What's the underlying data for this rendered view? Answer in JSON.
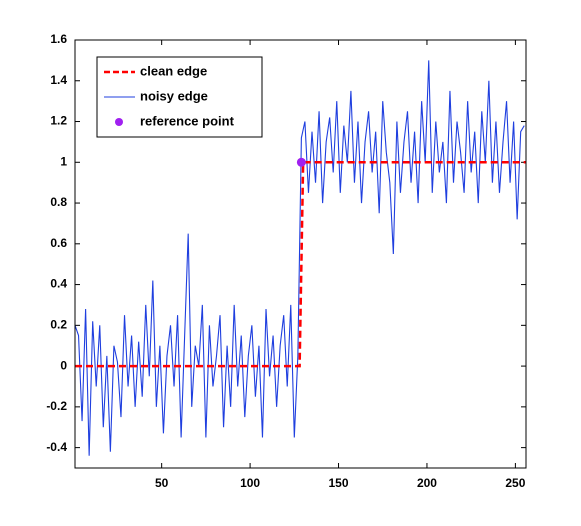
{
  "chart_data": {
    "type": "line",
    "xlim": [
      1,
      256
    ],
    "ylim": [
      -0.5,
      1.6
    ],
    "xticks": [
      50,
      100,
      150,
      200,
      250
    ],
    "yticks": [
      -0.4,
      -0.2,
      0,
      0.2,
      0.4,
      0.6,
      0.8,
      1,
      1.2,
      1.4,
      1.6
    ],
    "legend": "upper-left",
    "series": [
      {
        "name": "clean edge",
        "color": "#ff0000",
        "style": "dashed",
        "x": [
          1,
          128,
          130,
          256
        ],
        "values": [
          0,
          0,
          1,
          1
        ]
      },
      {
        "name": "noisy edge",
        "color": "#1f3fdf",
        "style": "solid",
        "x": [
          1,
          3,
          5,
          7,
          9,
          11,
          13,
          15,
          17,
          19,
          21,
          23,
          25,
          27,
          29,
          31,
          33,
          35,
          37,
          39,
          41,
          43,
          45,
          47,
          49,
          51,
          53,
          55,
          57,
          59,
          61,
          63,
          65,
          67,
          69,
          71,
          73,
          75,
          77,
          79,
          81,
          83,
          85,
          87,
          89,
          91,
          93,
          95,
          97,
          99,
          101,
          103,
          105,
          107,
          109,
          111,
          113,
          115,
          117,
          119,
          121,
          123,
          125,
          127,
          129,
          131,
          133,
          135,
          137,
          139,
          141,
          143,
          145,
          147,
          149,
          151,
          153,
          155,
          157,
          159,
          161,
          163,
          165,
          167,
          169,
          171,
          173,
          175,
          177,
          179,
          181,
          183,
          185,
          187,
          189,
          191,
          193,
          195,
          197,
          199,
          201,
          203,
          205,
          207,
          209,
          211,
          213,
          215,
          217,
          219,
          221,
          223,
          225,
          227,
          229,
          231,
          233,
          235,
          237,
          239,
          241,
          243,
          245,
          247,
          249,
          251,
          253,
          255
        ],
        "values": [
          0.2,
          0.15,
          -0.27,
          0.28,
          -0.44,
          0.22,
          -0.1,
          0.2,
          -0.3,
          0.05,
          -0.42,
          0.1,
          0.02,
          -0.25,
          0.25,
          -0.1,
          0.15,
          -0.2,
          0.12,
          -0.15,
          0.3,
          -0.05,
          0.42,
          -0.2,
          0.1,
          -0.33,
          0.05,
          0.2,
          -0.1,
          0.25,
          -0.35,
          0.15,
          0.65,
          -0.2,
          0.1,
          0.0,
          0.3,
          -0.35,
          0.2,
          -0.1,
          0.05,
          0.25,
          -0.3,
          0.1,
          -0.2,
          0.3,
          -0.1,
          0.15,
          -0.25,
          0.05,
          0.2,
          -0.15,
          0.1,
          -0.35,
          0.28,
          -0.05,
          0.15,
          -0.2,
          0.1,
          0.25,
          -0.1,
          0.3,
          -0.35,
          0.05,
          1.12,
          1.2,
          0.85,
          1.15,
          0.9,
          1.25,
          0.8,
          1.1,
          1.22,
          0.95,
          1.3,
          0.85,
          1.18,
          1.0,
          1.35,
          0.9,
          1.2,
          0.8,
          1.1,
          1.25,
          0.95,
          1.15,
          0.75,
          1.3,
          1.05,
          0.9,
          0.55,
          1.2,
          0.85,
          1.1,
          1.25,
          0.9,
          1.15,
          0.8,
          1.3,
          1.0,
          1.5,
          0.85,
          1.2,
          0.95,
          1.1,
          0.8,
          1.35,
          0.9,
          1.2,
          1.05,
          0.85,
          1.3,
          0.95,
          1.15,
          0.8,
          1.25,
          1.0,
          1.4,
          0.9,
          1.2,
          0.85,
          1.1,
          1.3,
          0.9,
          1.2,
          0.72,
          1.15,
          1.18
        ]
      },
      {
        "name": "reference point",
        "color": "#a020f0",
        "style": "marker",
        "x": [
          129
        ],
        "values": [
          1
        ]
      }
    ]
  }
}
